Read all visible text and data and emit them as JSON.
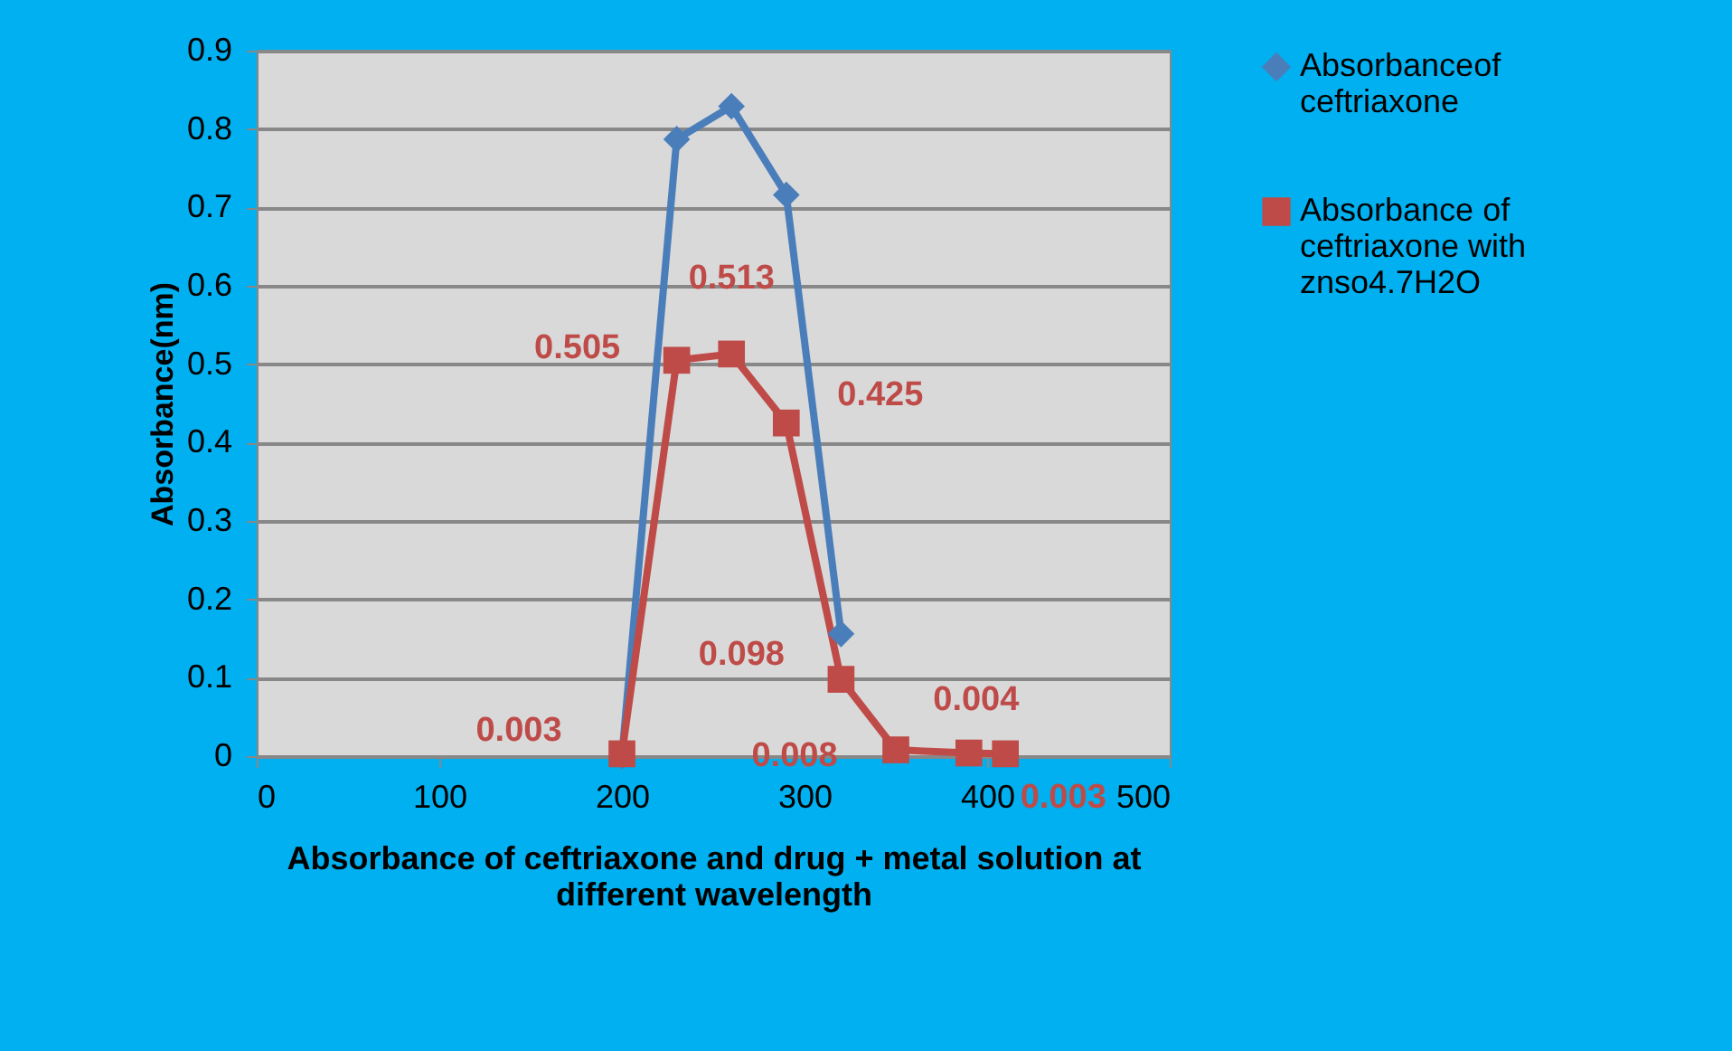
{
  "chart_data": {
    "type": "line",
    "ylabel": "Absorbance(nm)",
    "xlabel": "Absorbance of ceftriaxone and drug + metal solution at different wavelength",
    "x": [
      200,
      230,
      260,
      290,
      320,
      350,
      390,
      410
    ],
    "series": [
      {
        "name": "Absorbanceof ceftriaxone",
        "color": "#4a7ebb",
        "marker": "diamond",
        "values": [
          0,
          0.787,
          0.829,
          0.716,
          0.156,
          null,
          null,
          null
        ]
      },
      {
        "name": "Absorbance of ceftriaxone with znso4.7H2O",
        "color": "#be4b48",
        "marker": "square",
        "values": [
          0.003,
          0.505,
          0.513,
          0.425,
          0.098,
          0.008,
          0.004,
          0.003
        ],
        "value_labels": [
          "0.003",
          "0.505",
          "0.513",
          "0.425",
          "0.098",
          "0.008",
          "0.004",
          "0.003"
        ]
      }
    ],
    "xlim": [
      0,
      500
    ],
    "xticks": [
      0,
      100,
      200,
      300,
      400,
      500
    ],
    "ylim": [
      0,
      0.9
    ],
    "yticks": [
      0,
      0.1,
      0.2,
      0.3,
      0.4,
      0.5,
      0.6,
      0.7,
      0.8,
      0.9
    ],
    "grid": "y",
    "legend": "right"
  }
}
